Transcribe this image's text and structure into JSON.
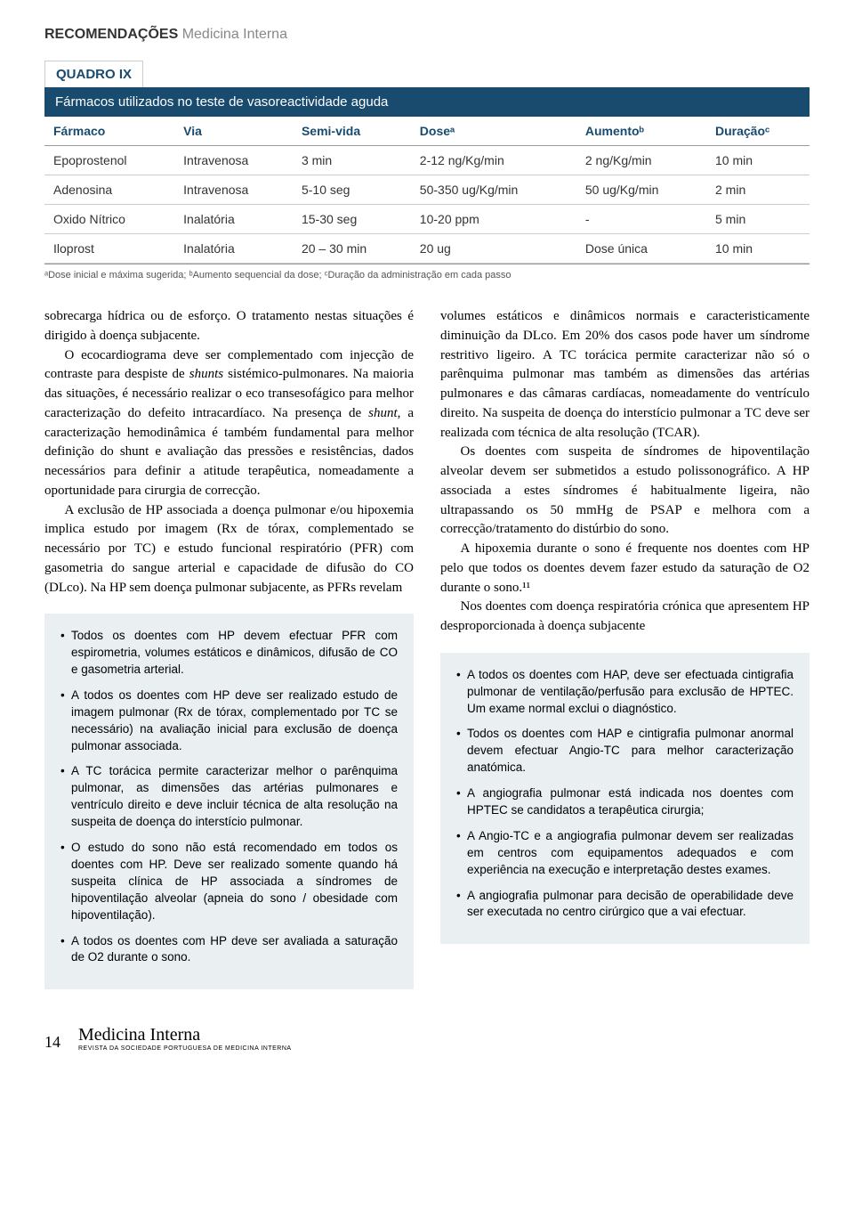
{
  "header": {
    "section": "RECOMENDAÇÕES",
    "subsection": "Medicina Interna"
  },
  "quadro": {
    "label": "QUADRO IX",
    "title": "Fármacos utilizados no teste de vasoreactividade aguda",
    "columns": [
      "Fármaco",
      "Via",
      "Semi-vida",
      "Doseᵃ",
      "Aumentoᵇ",
      "Duraçãoᶜ"
    ],
    "rows": [
      [
        "Epoprostenol",
        "Intravenosa",
        "3 min",
        "2-12 ng/Kg/min",
        "2 ng/Kg/min",
        "10 min"
      ],
      [
        "Adenosina",
        "Intravenosa",
        "5-10 seg",
        "50-350 ug/Kg/min",
        "50 ug/Kg/min",
        "2 min"
      ],
      [
        "Oxido Nítrico",
        "Inalatória",
        "15-30 seg",
        "10-20 ppm",
        "-",
        "5 min"
      ],
      [
        "Iloprost",
        "Inalatória",
        "20 – 30 min",
        "20 ug",
        "Dose única",
        "10 min"
      ]
    ],
    "footnote": "ᵃDose inicial e máxima sugerida; ᵇAumento sequencial da dose; ᶜDuração da administração em cada passo"
  },
  "left_col": {
    "p1": "sobrecarga hídrica ou de esforço. O tratamento nestas situações é dirigido à doença subjacente.",
    "p2_a": "O ecocardiograma deve ser complementado com injecção de contraste para despiste de ",
    "p2_i": "shunts",
    "p2_b": " sistémico-pulmonares. Na maioria das situações, é necessário realizar o eco transesofágico para melhor caracterização do defeito intracardíaco. Na presença de ",
    "p2_i2": "shunt",
    "p2_c": ", a caracterização hemodinâmica é também fundamental para melhor definição do shunt e avaliação das pressões e resistências, dados necessários para definir a atitude terapêutica, nomeadamente a oportunidade para cirurgia de correcção.",
    "p3": "A exclusão de HP associada a doença pulmonar e/ou hipoxemia implica estudo por imagem (Rx de tórax, complementado se necessário por TC) e estudo funcional respiratório (PFR) com gasometria do sangue arterial e capacidade de difusão do CO (DLco). Na HP sem doença pulmonar subjacente, as PFRs revelam",
    "box": [
      "Todos os doentes com HP devem efectuar PFR com espirometria, volumes estáticos e dinâmicos, difusão de CO e gasometria arterial.",
      "A todos os doentes com HP deve ser realizado estudo de imagem pulmonar (Rx de tórax, complementado por TC se necessário) na avaliação inicial para exclusão de doença pulmonar associada.",
      "A TC torácica permite caracterizar melhor o parênquima pulmonar, as dimensões das artérias pulmonares e ventrículo direito e deve incluir técnica de alta resolução na suspeita de doença do interstício pulmonar.",
      "O estudo do sono não está recomendado em todos os doentes com HP. Deve ser realizado somente quando há suspeita clínica de HP associada a síndromes de hipoventilação alveolar (apneia do sono / obesidade com hipoventilação).",
      "A todos os doentes com HP deve ser avaliada a saturação de O2 durante o sono."
    ]
  },
  "right_col": {
    "p1": "volumes estáticos e dinâmicos normais e caracteristicamente diminuição da DLco. Em 20% dos casos pode haver um síndrome restritivo ligeiro. A TC torácica permite caracterizar não só o parênquima pulmonar mas também as dimensões das artérias pulmonares e das câmaras cardíacas, nomeadamente do ventrículo direito. Na suspeita de doença do interstício pulmonar a TC deve ser realizada com técnica de alta resolução (TCAR).",
    "p2": "Os doentes com suspeita de síndromes de hipoventilação alveolar devem ser submetidos a estudo polissonográfico. A HP associada a estes síndromes é habitualmente ligeira, não ultrapassando os 50 mmHg de PSAP e melhora com a correcção/tratamento do distúrbio do sono.",
    "p3": "A hipoxemia durante o sono é frequente nos doentes com HP pelo que todos os doentes devem fazer estudo da saturação de O2 durante o sono.¹¹",
    "p4": "Nos doentes com doença respiratória crónica que apresentem HP desproporcionada à doença subjacente",
    "box": [
      "A todos os doentes com HAP, deve ser efectuada cintigrafia pulmonar de ventilação/perfusão para exclusão de HPTEC. Um exame normal exclui o diagnóstico.",
      "Todos os doentes com HAP e cintigrafia pulmonar anormal devem efectuar Angio-TC para melhor caracterização anatómica.",
      "A angiografia pulmonar está indicada nos doentes com HPTEC se candidatos a terapêutica cirurgia;",
      "A Angio-TC e a angiografia pulmonar devem ser realizadas em centros com equipamentos adequados e com experiência na execução e interpretação destes exames.",
      "A angiografia pulmonar para decisão de operabilidade deve ser executada no centro cirúrgico que a vai efectuar."
    ]
  },
  "footer": {
    "page": "14",
    "journal": "Medicina Interna",
    "sub": "REVISTA DA SOCIEDADE PORTUGUESA DE MEDICINA INTERNA"
  }
}
